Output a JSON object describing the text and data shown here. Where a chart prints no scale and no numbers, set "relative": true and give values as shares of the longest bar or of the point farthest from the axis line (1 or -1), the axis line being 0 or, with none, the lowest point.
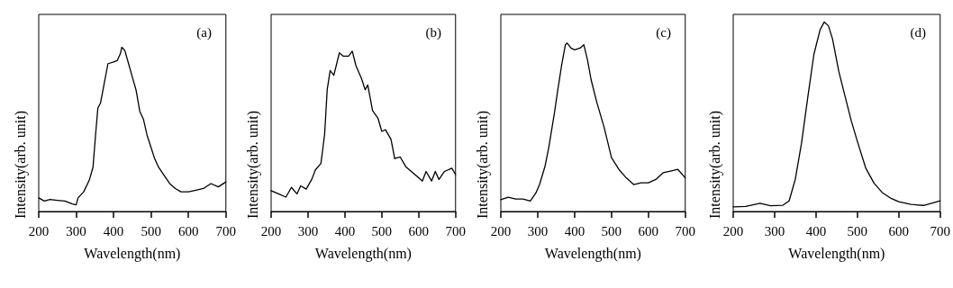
{
  "chart_data": [
    {
      "type": "line",
      "relative": true,
      "xlabel": "Wavelength(nm)",
      "ylabel": "Intensity(arb. unit)",
      "annotations": [
        "(a)"
      ],
      "xlim": [
        200,
        700
      ],
      "xticks": [
        200,
        300,
        400,
        500,
        600,
        700
      ],
      "grid": false,
      "marker": "none",
      "line_style": "solid",
      "series": [
        {
          "color": "#000000",
          "x": [
            200,
            215,
            230,
            250,
            270,
            290,
            300,
            305,
            320,
            335,
            345,
            352,
            358,
            365,
            375,
            385,
            400,
            410,
            418,
            422,
            430,
            440,
            450,
            460,
            470,
            480,
            490,
            500,
            510,
            520,
            535,
            550,
            565,
            580,
            600,
            620,
            640,
            660,
            680,
            700
          ],
          "values": [
            0.083,
            0.064,
            0.073,
            0.068,
            0.064,
            0.046,
            0.04,
            0.083,
            0.12,
            0.19,
            0.27,
            0.47,
            0.63,
            0.66,
            0.78,
            0.9,
            0.91,
            0.92,
            0.96,
            1.0,
            0.98,
            0.9,
            0.82,
            0.74,
            0.61,
            0.56,
            0.46,
            0.39,
            0.32,
            0.27,
            0.22,
            0.17,
            0.14,
            0.12,
            0.12,
            0.13,
            0.14,
            0.17,
            0.15,
            0.18
          ]
        }
      ]
    },
    {
      "type": "line",
      "relative": true,
      "xlabel": "Wavelength(nm)",
      "ylabel": "Intensity(arb. unit)",
      "annotations": [
        "(b)"
      ],
      "xlim": [
        200,
        700
      ],
      "xticks": [
        200,
        300,
        400,
        500,
        600,
        700
      ],
      "grid": false,
      "marker": "none",
      "line_style": "solid",
      "series": [
        {
          "color": "#000000",
          "x": [
            200,
            220,
            240,
            255,
            270,
            280,
            295,
            310,
            320,
            335,
            345,
            352,
            360,
            370,
            385,
            395,
            410,
            420,
            430,
            445,
            455,
            462,
            475,
            490,
            500,
            510,
            525,
            535,
            550,
            565,
            580,
            595,
            610,
            620,
            635,
            645,
            655,
            670,
            690,
            700
          ],
          "values": [
            0.13,
            0.11,
            0.09,
            0.15,
            0.11,
            0.16,
            0.14,
            0.2,
            0.26,
            0.3,
            0.48,
            0.76,
            0.88,
            0.85,
            0.99,
            0.97,
            0.97,
            1.0,
            0.91,
            0.83,
            0.76,
            0.79,
            0.63,
            0.58,
            0.5,
            0.51,
            0.45,
            0.33,
            0.34,
            0.28,
            0.25,
            0.22,
            0.19,
            0.25,
            0.19,
            0.25,
            0.2,
            0.25,
            0.27,
            0.23
          ]
        }
      ]
    },
    {
      "type": "line",
      "relative": true,
      "xlabel": "Wavelength(nm)",
      "ylabel": "Intensity(arb. unit)",
      "annotations": [
        "(c)"
      ],
      "xlim": [
        200,
        700
      ],
      "xticks": [
        200,
        300,
        400,
        500,
        600,
        700
      ],
      "grid": false,
      "marker": "none",
      "line_style": "solid",
      "series": [
        {
          "color": "#000000",
          "x": [
            200,
            220,
            240,
            260,
            280,
            295,
            305,
            320,
            330,
            345,
            355,
            365,
            375,
            380,
            390,
            400,
            415,
            425,
            435,
            445,
            460,
            480,
            500,
            520,
            540,
            560,
            580,
            600,
            620,
            640,
            660,
            680,
            700
          ],
          "values": [
            0.07,
            0.085,
            0.074,
            0.074,
            0.062,
            0.11,
            0.16,
            0.27,
            0.38,
            0.58,
            0.73,
            0.87,
            0.99,
            1.0,
            0.97,
            0.96,
            0.97,
            0.99,
            0.9,
            0.78,
            0.65,
            0.5,
            0.32,
            0.25,
            0.2,
            0.16,
            0.17,
            0.17,
            0.19,
            0.23,
            0.24,
            0.25,
            0.2
          ]
        }
      ]
    },
    {
      "type": "line",
      "relative": true,
      "xlabel": "Wavelength(nm)",
      "ylabel": "Intensity(arb. unit)",
      "annotations": [
        "(d)"
      ],
      "xlim": [
        200,
        700
      ],
      "xticks": [
        200,
        300,
        400,
        500,
        600,
        700
      ],
      "grid": false,
      "marker": "none",
      "line_style": "solid",
      "series": [
        {
          "color": "#000000",
          "x": [
            200,
            230,
            265,
            290,
            320,
            335,
            350,
            365,
            380,
            395,
            410,
            420,
            430,
            440,
            455,
            470,
            485,
            500,
            520,
            540,
            560,
            580,
            600,
            630,
            660,
            700
          ],
          "values": [
            0.024,
            0.027,
            0.043,
            0.03,
            0.033,
            0.056,
            0.17,
            0.36,
            0.6,
            0.83,
            0.96,
            1.0,
            0.98,
            0.91,
            0.74,
            0.61,
            0.48,
            0.37,
            0.23,
            0.15,
            0.1,
            0.071,
            0.052,
            0.037,
            0.032,
            0.056
          ]
        }
      ]
    }
  ]
}
